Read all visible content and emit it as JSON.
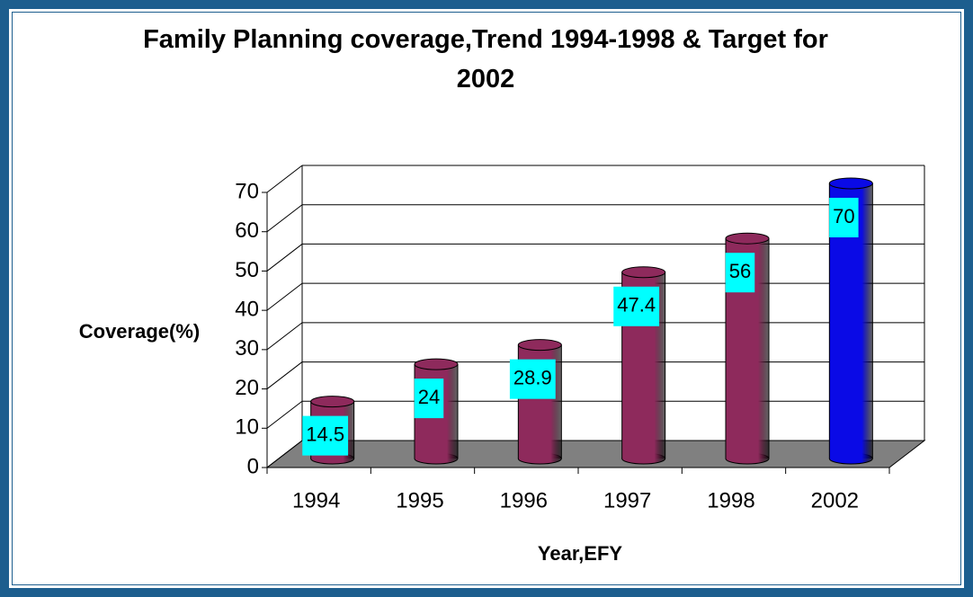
{
  "chart_data": {
    "type": "bar3d",
    "title": "Family Planning coverage,Trend 1994-1998 & Target for 2002",
    "x_label": "Year,EFY",
    "y_label": "Coverage(%)",
    "categories": [
      "1994",
      "1995",
      "1996",
      "1997",
      "1998",
      "2002"
    ],
    "values": [
      14.5,
      24,
      28.9,
      47.4,
      56,
      70
    ],
    "colors": [
      "#8e2a5c",
      "#8e2a5c",
      "#8e2a5c",
      "#8e2a5c",
      "#8e2a5c",
      "#0a0ae6"
    ],
    "label_background": "#00ffff",
    "floor_color": "#808080",
    "ylim": [
      0,
      70
    ],
    "yticks": [
      0,
      10,
      20,
      30,
      40,
      50,
      60,
      70
    ],
    "grid": true
  }
}
